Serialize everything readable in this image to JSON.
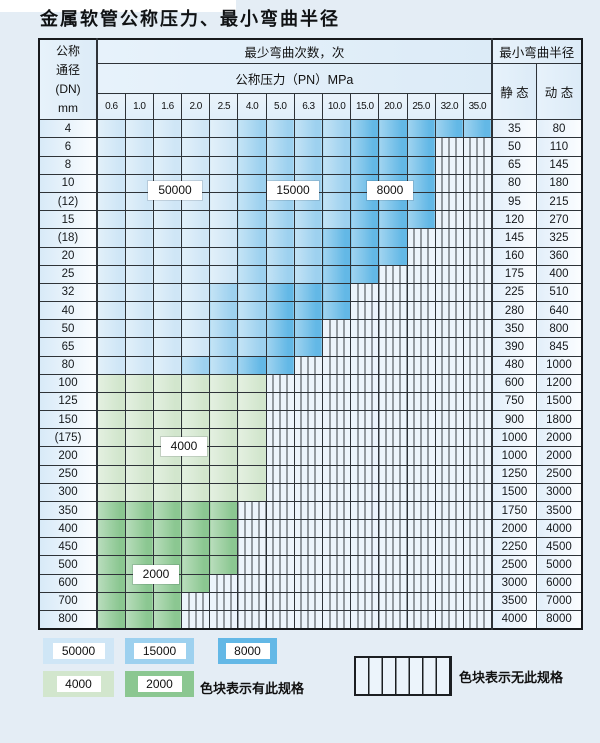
{
  "title": "金属软管公称压力、最小弯曲半径",
  "colors": {
    "page_bg": "#e4edf5",
    "grid": "#2e3338",
    "blue_50000": "#cfe6f6",
    "blue_15000": "#9dd1ef",
    "blue_8000": "#63b8e6",
    "green_4000": "#d2e6cd",
    "green_2000": "#8bc791",
    "hatch_bg": "#ecf4fb",
    "hatch_line": "#3a4046"
  },
  "table": {
    "header": {
      "dn_lines": [
        "公称",
        "通径",
        "(DN)",
        "mm"
      ],
      "bend_cycles": "最少弯曲次数，次",
      "pressure": "公称压力（PN）MPa",
      "min_radius": "最小弯曲半径",
      "static": "静 态",
      "dynamic": "动 态"
    }
  },
  "chart_data": {
    "type": "table",
    "title": "金属软管公称压力、最小弯曲半径",
    "columns_unit": "公称压力（PN）MPa",
    "columns": [
      "0.6",
      "1.0",
      "1.6",
      "2.0",
      "2.5",
      "4.0",
      "5.0",
      "6.3",
      "10.0",
      "15.0",
      "20.0",
      "25.0",
      "32.0",
      "35.0"
    ],
    "radius_columns": [
      "静态",
      "动态"
    ],
    "code_legend": {
      "L": "50000次",
      "M": "15000次",
      "D": "8000次",
      "g": "4000次",
      "G": "2000次",
      "H": "无此规格"
    },
    "rows": [
      {
        "dn": "4",
        "cells": "LLLLLMMMMDDDDD",
        "static": "35",
        "dynamic": "80"
      },
      {
        "dn": "6",
        "cells": "LLLLLMMMMDDDHH",
        "static": "50",
        "dynamic": "110"
      },
      {
        "dn": "8",
        "cells": "LLLLLMMMMDDDHH",
        "static": "65",
        "dynamic": "145"
      },
      {
        "dn": "10",
        "cells": "LLLLLMMMMDDDHH",
        "static": "80",
        "dynamic": "180"
      },
      {
        "dn": "(12)",
        "cells": "LLLLLMMMMDDDHH",
        "static": "95",
        "dynamic": "215"
      },
      {
        "dn": "15",
        "cells": "LLLLLMMMMDDDHH",
        "static": "120",
        "dynamic": "270"
      },
      {
        "dn": "(18)",
        "cells": "LLLLLMMMDDDHHH",
        "static": "145",
        "dynamic": "325"
      },
      {
        "dn": "20",
        "cells": "LLLLLMMMDDDHHH",
        "static": "160",
        "dynamic": "360"
      },
      {
        "dn": "25",
        "cells": "LLLLLMMMDDHHHH",
        "static": "175",
        "dynamic": "400"
      },
      {
        "dn": "32",
        "cells": "LLLLMMDDDHHHHH",
        "static": "225",
        "dynamic": "510"
      },
      {
        "dn": "40",
        "cells": "LLLLMMDDDHHHHH",
        "static": "280",
        "dynamic": "640"
      },
      {
        "dn": "50",
        "cells": "LLLLMMDDHHHHHH",
        "static": "350",
        "dynamic": "800"
      },
      {
        "dn": "65",
        "cells": "LLLLMMDDHHHHHH",
        "static": "390",
        "dynamic": "845"
      },
      {
        "dn": "80",
        "cells": "LLLMMDDHHHHHHH",
        "static": "480",
        "dynamic": "1000"
      },
      {
        "dn": "100",
        "cells": "ggggggHHHHHHHH",
        "static": "600",
        "dynamic": "1200"
      },
      {
        "dn": "125",
        "cells": "ggggggHHHHHHHH",
        "static": "750",
        "dynamic": "1500"
      },
      {
        "dn": "150",
        "cells": "ggggggHHHHHHHH",
        "static": "900",
        "dynamic": "1800"
      },
      {
        "dn": "(175)",
        "cells": "ggggggHHHHHHHH",
        "static": "1000",
        "dynamic": "2000"
      },
      {
        "dn": "200",
        "cells": "ggggggHHHHHHHH",
        "static": "1000",
        "dynamic": "2000"
      },
      {
        "dn": "250",
        "cells": "ggggggHHHHHHHH",
        "static": "1250",
        "dynamic": "2500"
      },
      {
        "dn": "300",
        "cells": "ggggggHHHHHHHH",
        "static": "1500",
        "dynamic": "3000"
      },
      {
        "dn": "350",
        "cells": "GGGGGHHHHHHHHH",
        "static": "1750",
        "dynamic": "3500"
      },
      {
        "dn": "400",
        "cells": "GGGGGHHHHHHHHH",
        "static": "2000",
        "dynamic": "4000"
      },
      {
        "dn": "450",
        "cells": "GGGGGHHHHHHHHH",
        "static": "2250",
        "dynamic": "4500"
      },
      {
        "dn": "500",
        "cells": "GGGGGHHHHHHHHH",
        "static": "2500",
        "dynamic": "5000"
      },
      {
        "dn": "600",
        "cells": "GGGGHHHHHHHHHH",
        "static": "3000",
        "dynamic": "6000"
      },
      {
        "dn": "700",
        "cells": "GGGHHHHHHHHHHH",
        "static": "3500",
        "dynamic": "7000"
      },
      {
        "dn": "800",
        "cells": "GGGHHHHHHHHHHH",
        "static": "4000",
        "dynamic": "8000"
      }
    ]
  },
  "legend": {
    "items": [
      {
        "value": "50000",
        "code": "L"
      },
      {
        "value": "15000",
        "code": "M"
      },
      {
        "value": "8000",
        "code": "D"
      },
      {
        "value": "4000",
        "code": "g"
      },
      {
        "value": "2000",
        "code": "G"
      }
    ],
    "has_spec_text": "色块表示有此规格",
    "no_spec_text": "色块表示无此规格"
  }
}
